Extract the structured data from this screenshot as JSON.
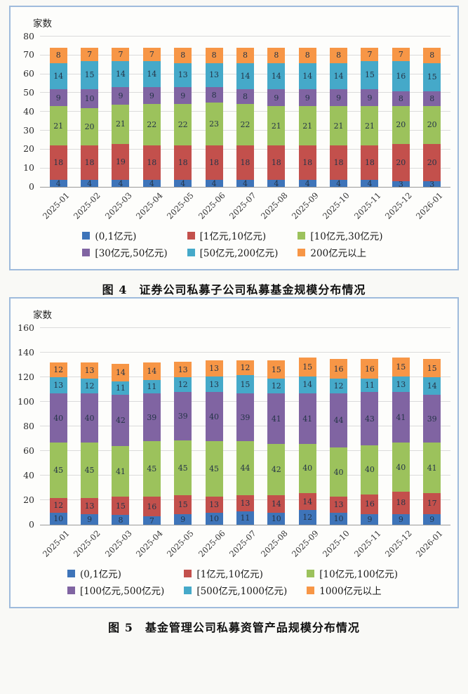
{
  "page": {
    "background": "#f9f9f6"
  },
  "chart_data": [
    {
      "type": "bar",
      "stacked": true,
      "title": "",
      "ylabel": "家数",
      "xlabel": "",
      "caption": "图 4　证券公司私募子公司私募基金规模分布情况",
      "categories": [
        "2025-01",
        "2025-02",
        "2025-03",
        "2025-04",
        "2025-05",
        "2025-06",
        "2025-07",
        "2025-08",
        "2025-09",
        "2025-10",
        "2025-11",
        "2025-12",
        "2026-01"
      ],
      "series": [
        {
          "name": "(0,1亿元)",
          "color": "#3e74b9",
          "values": [
            4,
            4,
            4,
            4,
            4,
            4,
            4,
            4,
            4,
            4,
            4,
            3,
            3
          ]
        },
        {
          "name": "[1亿元,10亿元)",
          "color": "#c3504c",
          "values": [
            18,
            18,
            19,
            18,
            18,
            18,
            18,
            18,
            18,
            18,
            18,
            20,
            20
          ]
        },
        {
          "name": "[10亿元,30亿元)",
          "color": "#9cc25c",
          "values": [
            21,
            20,
            21,
            22,
            22,
            23,
            22,
            21,
            21,
            21,
            21,
            20,
            20
          ]
        },
        {
          "name": "[30亿元,50亿元)",
          "color": "#8064a2",
          "values": [
            9,
            10,
            9,
            9,
            9,
            8,
            8,
            9,
            9,
            9,
            9,
            8,
            8
          ]
        },
        {
          "name": "[50亿元,200亿元)",
          "color": "#45a9c9",
          "values": [
            14,
            15,
            14,
            14,
            13,
            13,
            14,
            14,
            14,
            14,
            15,
            16,
            15
          ]
        },
        {
          "name": "200亿元以上",
          "color": "#f79646",
          "values": [
            8,
            7,
            7,
            7,
            8,
            8,
            8,
            8,
            8,
            8,
            7,
            7,
            8
          ]
        }
      ],
      "ylim": [
        0,
        80
      ],
      "ytick_step": 10,
      "grid": true,
      "legend_position": "bottom",
      "legend_columns": 3
    },
    {
      "type": "bar",
      "stacked": true,
      "title": "",
      "ylabel": "家数",
      "xlabel": "",
      "caption": "图 5　基金管理公司私募资管产品规模分布情况",
      "categories": [
        "2025-01",
        "2025-02",
        "2025-03",
        "2025-04",
        "2025-05",
        "2025-06",
        "2025-07",
        "2025-08",
        "2025-09",
        "2025-10",
        "2025-11",
        "2025-12",
        "2026-01"
      ],
      "series": [
        {
          "name": "(0,1亿元)",
          "color": "#3e74b9",
          "values": [
            10,
            9,
            8,
            7,
            9,
            10,
            11,
            10,
            12,
            10,
            9,
            9,
            9
          ]
        },
        {
          "name": "[1亿元,10亿元)",
          "color": "#c3504c",
          "values": [
            12,
            13,
            15,
            16,
            15,
            13,
            13,
            14,
            14,
            13,
            16,
            18,
            17
          ]
        },
        {
          "name": "[10亿元,100亿元)",
          "color": "#9cc25c",
          "values": [
            45,
            45,
            41,
            45,
            45,
            45,
            44,
            42,
            40,
            40,
            40,
            40,
            41
          ]
        },
        {
          "name": "[100亿元,500亿元)",
          "color": "#8064a2",
          "values": [
            40,
            40,
            42,
            39,
            39,
            40,
            39,
            41,
            41,
            44,
            43,
            41,
            39
          ]
        },
        {
          "name": "[500亿元,1000亿元)",
          "color": "#45a9c9",
          "values": [
            13,
            12,
            11,
            11,
            12,
            13,
            15,
            12,
            14,
            12,
            11,
            13,
            14
          ]
        },
        {
          "name": "1000亿元以上",
          "color": "#f79646",
          "values": [
            12,
            13,
            14,
            14,
            13,
            13,
            12,
            15,
            15,
            16,
            16,
            15,
            15
          ]
        }
      ],
      "ylim": [
        0,
        160
      ],
      "ytick_step": 20,
      "grid": true,
      "legend_position": "bottom",
      "legend_columns": 3
    }
  ]
}
